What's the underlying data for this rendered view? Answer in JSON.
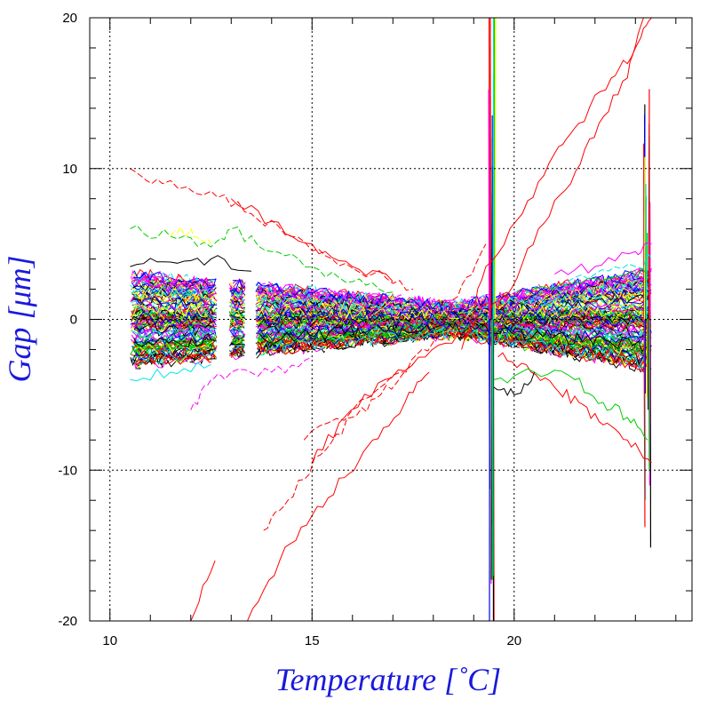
{
  "chart_data": {
    "type": "line",
    "title": "",
    "xlabel": "Temperature [˚C]",
    "ylabel": "Gap [μm]",
    "xlim": [
      9.5,
      24.4
    ],
    "ylim": [
      -20,
      20
    ],
    "xticks": [
      {
        "value": 10,
        "label": "10"
      },
      {
        "value": 15,
        "label": "15"
      },
      {
        "value": 20,
        "label": "20"
      }
    ],
    "yticks": [
      {
        "value": 20,
        "label": "20"
      },
      {
        "value": 10,
        "label": "10"
      },
      {
        "value": 0,
        "label": "0"
      },
      {
        "value": -10,
        "label": "-10"
      },
      {
        "value": -20,
        "label": "-20"
      }
    ],
    "grid": {
      "x": [
        10,
        15,
        20
      ],
      "y": [
        10,
        0,
        -10
      ],
      "style": "dotted"
    },
    "legend": "none",
    "bundle": {
      "description_values": "dense band of many sensor traces",
      "x_range": [
        10.5,
        23.4
      ],
      "spread_at_10_5": 3.0,
      "spread_at_18_5": 0.9,
      "spread_at_23_4": 3.2,
      "segment_gaps": [
        [
          12.65,
          12.95
        ],
        [
          13.35,
          13.6
        ]
      ],
      "spike_positions": [
        19.45,
        23.3
      ],
      "colors": [
        "#000000",
        "#ff0000",
        "#00cc00",
        "#0000ff",
        "#00e5e5",
        "#ff00ff",
        "#ffff00"
      ]
    },
    "series": [
      {
        "color": "#ff0000",
        "x": [
          18.7,
          19.3,
          20.2,
          21.0,
          21.6,
          22.4,
          23.0,
          23.4
        ],
        "y": [
          -2.0,
          3.5,
          7.0,
          11.0,
          13.0,
          16.0,
          18.0,
          20.0
        ]
      },
      {
        "color": "#ff0000",
        "x": [
          14.8,
          16.0,
          17.2,
          18.0,
          18.6,
          19.3
        ],
        "y": [
          -8.0,
          -6.0,
          -3.5,
          -1.5,
          1.5,
          5.0
        ]
      },
      {
        "color": "#ff0000",
        "x": [
          19.4,
          19.8,
          20.6,
          21.4,
          22.1,
          22.8,
          23.2
        ],
        "y": [
          0.5,
          1.5,
          6.0,
          9.0,
          13.0,
          16.0,
          20.0
        ]
      },
      {
        "color": "#ff0000",
        "x": [
          15.0,
          15.8,
          16.8,
          17.8,
          18.8,
          19.3
        ],
        "y": [
          -9.5,
          -6.5,
          -4.0,
          -2.5,
          -1.0,
          1.0
        ]
      },
      {
        "color": "#ff0000",
        "x": [
          13.8,
          14.4,
          15.2,
          16.0,
          16.7,
          17.5
        ],
        "y": [
          -14.0,
          -12.0,
          -9.0,
          -6.5,
          -5.0,
          -3.0
        ]
      },
      {
        "color": "#ff0000",
        "x": [
          12.0,
          12.6
        ],
        "y": [
          -20.0,
          -16.0
        ]
      },
      {
        "color": "#ff0000",
        "x": [
          13.4,
          14.2,
          15.0,
          15.8,
          16.5,
          17.3,
          17.9
        ],
        "y": [
          -20.0,
          -16.0,
          -13.0,
          -10.5,
          -8.0,
          -5.5,
          -3.5
        ]
      },
      {
        "color": "#ff0000",
        "x": [
          10.5,
          11.3,
          12.5,
          13.5,
          14.5,
          15.5,
          16.5,
          17.5
        ],
        "y": [
          10.0,
          9.0,
          8.5,
          7.0,
          5.5,
          4.0,
          3.0,
          2.0
        ]
      },
      {
        "color": "#ff0000",
        "x": [
          19.6,
          20.3,
          21.0,
          21.6,
          22.2,
          22.8,
          23.4
        ],
        "y": [
          -2.5,
          -3.0,
          -4.5,
          -5.5,
          -7.0,
          -8.0,
          -9.5
        ]
      },
      {
        "color": "#ff0000",
        "x": [
          13.0,
          14.0,
          15.0,
          16.0,
          17.0
        ],
        "y": [
          8.0,
          6.5,
          5.0,
          3.5,
          2.5
        ]
      },
      {
        "color": "#00cc00",
        "x": [
          10.5,
          11.5,
          12.5,
          13.0,
          14.0,
          15.0,
          16.0,
          17.0
        ],
        "y": [
          6.0,
          5.5,
          4.8,
          6.0,
          4.5,
          3.5,
          2.5,
          1.8
        ]
      },
      {
        "color": "#00cc00",
        "x": [
          19.5,
          20.5,
          21.5,
          22.2,
          22.8,
          23.3
        ],
        "y": [
          -4.0,
          -3.5,
          -4.0,
          -5.5,
          -6.5,
          -8.0
        ]
      },
      {
        "color": "#00cc00",
        "x": [
          20.5,
          21.5,
          22.5,
          23.3
        ],
        "y": [
          2.0,
          2.5,
          2.8,
          3.0
        ]
      },
      {
        "color": "#ff00ff",
        "x": [
          12.0,
          12.5,
          13.0,
          14.0,
          15.0
        ],
        "y": [
          -6.0,
          -4.0,
          -3.5,
          -3.5,
          -2.5
        ]
      },
      {
        "color": "#ff00ff",
        "x": [
          21.0,
          22.0,
          23.0,
          23.4
        ],
        "y": [
          3.0,
          3.5,
          4.5,
          5.0
        ]
      },
      {
        "color": "#00e5e5",
        "x": [
          10.5,
          11.5,
          12.5
        ],
        "y": [
          -4.0,
          -3.5,
          -3.0
        ]
      },
      {
        "color": "#00e5e5",
        "x": [
          21.0,
          22.0,
          23.0,
          23.4
        ],
        "y": [
          2.0,
          3.0,
          3.5,
          4.0
        ]
      },
      {
        "color": "#000000",
        "x": [
          10.5,
          11.5,
          12.5,
          13.5
        ],
        "y": [
          3.5,
          3.8,
          4.0,
          3.2
        ]
      },
      {
        "color": "#000000",
        "x": [
          19.5,
          20.0,
          20.5
        ],
        "y": [
          -4.5,
          -5.0,
          -3.5
        ]
      },
      {
        "color": "#ffff00",
        "x": [
          11.5,
          12.0,
          12.5
        ],
        "y": [
          5.5,
          6.0,
          5.0
        ]
      }
    ]
  }
}
